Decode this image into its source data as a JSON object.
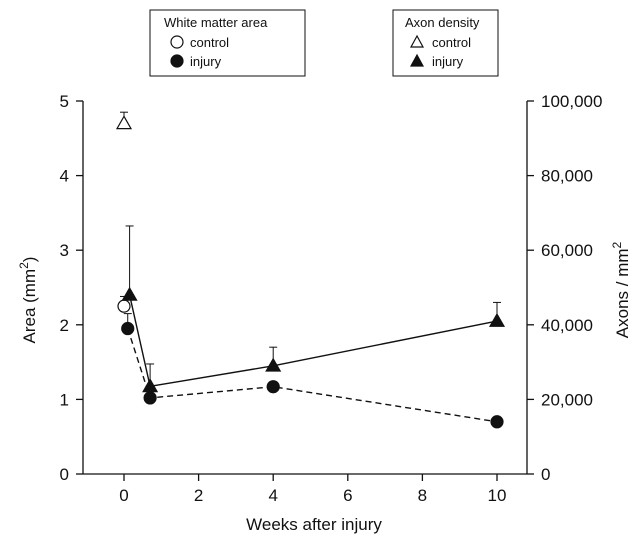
{
  "chart_data": {
    "type": "line",
    "xlabel": "Weeks after injury",
    "ylabel_left": {
      "text": "Area (mm",
      "sup": "2",
      "close": ")"
    },
    "ylabel_right": {
      "text": "Axons / mm",
      "sup": "2"
    },
    "x_ticks": [
      "0",
      "2",
      "4",
      "6",
      "8",
      "10"
    ],
    "left_ticks": [
      "0",
      "1",
      "2",
      "3",
      "4",
      "5"
    ],
    "right_ticks": [
      "0",
      "20,000",
      "40,000",
      "60,000",
      "80,000",
      "100,000"
    ],
    "xlim": [
      -0.6,
      10.6
    ],
    "ylim_left": [
      0,
      5
    ],
    "ylim_right": [
      0,
      100000
    ],
    "legends": [
      {
        "title": "White matter area",
        "entries": [
          {
            "marker": "open-circle",
            "label": "control"
          },
          {
            "marker": "filled-circle",
            "label": "injury"
          }
        ]
      },
      {
        "title": "Axon density",
        "entries": [
          {
            "marker": "open-triangle",
            "label": "control"
          },
          {
            "marker": "filled-triangle",
            "label": "injury"
          }
        ]
      }
    ],
    "series": [
      {
        "axis": "left",
        "marker": "open-circle",
        "line": "none",
        "points": [
          {
            "x": 0,
            "y": 2.25,
            "err": 0.13
          }
        ]
      },
      {
        "axis": "left",
        "marker": "filled-circle",
        "line": "dashed",
        "points": [
          {
            "x": 0.1,
            "y": 1.95,
            "err": 0.2
          },
          {
            "x": 0.7,
            "y": 1.02,
            "err": 0.1
          },
          {
            "x": 4,
            "y": 1.17,
            "err": 0.05
          },
          {
            "x": 10,
            "y": 0.7,
            "err": 0.03
          }
        ]
      },
      {
        "axis": "right",
        "marker": "open-triangle",
        "line": "none",
        "points": [
          {
            "x": 0,
            "y": 94000,
            "err": 3000
          }
        ]
      },
      {
        "axis": "right",
        "marker": "filled-triangle",
        "line": "solid",
        "points": [
          {
            "x": 0.15,
            "y": 48000,
            "err": 18500
          },
          {
            "x": 0.7,
            "y": 23500,
            "err": 6000
          },
          {
            "x": 4,
            "y": 29000,
            "err": 5000
          },
          {
            "x": 10,
            "y": 41000,
            "err": 5000
          }
        ]
      }
    ]
  }
}
